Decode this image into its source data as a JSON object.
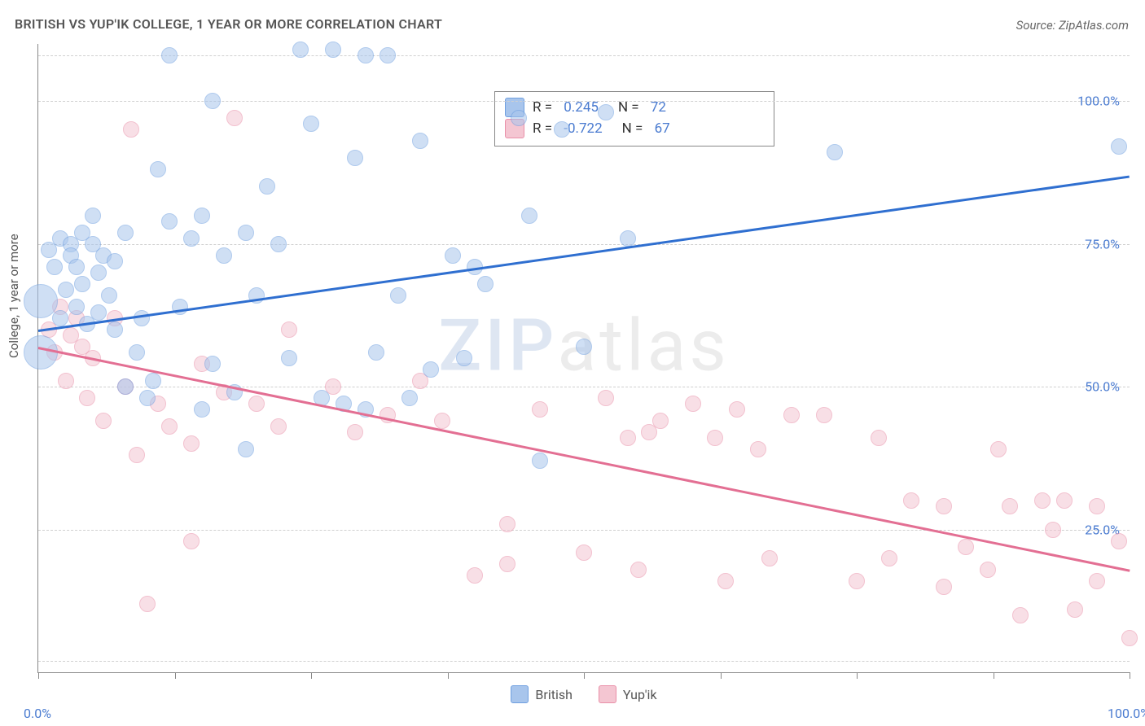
{
  "title": "BRITISH VS YUP'IK COLLEGE, 1 YEAR OR MORE CORRELATION CHART",
  "source_label": "Source: ZipAtlas.com",
  "ylabel": "College, 1 year or more",
  "watermark": {
    "part1": "ZIP",
    "part2": "atlas"
  },
  "chart": {
    "type": "scatter",
    "xlim": [
      0,
      100
    ],
    "ylim": [
      0,
      110
    ],
    "background_color": "#ffffff",
    "grid_color": "#d0d0d0",
    "axis_color": "#888888",
    "ytick_labels": [
      {
        "value": 25,
        "label": "25.0%"
      },
      {
        "value": 50,
        "label": "50.0%"
      },
      {
        "value": 75,
        "label": "75.0%"
      },
      {
        "value": 100,
        "label": "100.0%"
      }
    ],
    "xtick_positions": [
      0,
      12.5,
      25,
      37.5,
      50,
      62.5,
      75,
      87.5,
      100
    ],
    "xtick_labels": [
      {
        "value": 0,
        "label": "0.0%"
      },
      {
        "value": 100,
        "label": "100.0%"
      }
    ],
    "gridlines_y": [
      2,
      25,
      50,
      75,
      100,
      108
    ],
    "marker_radius": 9,
    "marker_opacity": 0.55,
    "line_width": 2.5,
    "label_fontsize": 16,
    "label_color": "#4a7bd0"
  },
  "series": {
    "british": {
      "label": "British",
      "fill": "#a8c5ec",
      "stroke": "#6f9fe0",
      "line_color": "#2f6fd0",
      "R_label": "R = ",
      "R_value": "0.245",
      "N_label": "N = ",
      "N_value": "72",
      "trend": {
        "x1": 0,
        "y1": 60,
        "x2": 100,
        "y2": 87
      },
      "points": [
        {
          "x": 0.2,
          "y": 65,
          "r": 20
        },
        {
          "x": 0.2,
          "y": 56,
          "r": 20
        },
        {
          "x": 1,
          "y": 74
        },
        {
          "x": 1.5,
          "y": 71
        },
        {
          "x": 2,
          "y": 76
        },
        {
          "x": 2,
          "y": 62
        },
        {
          "x": 2.5,
          "y": 67
        },
        {
          "x": 3,
          "y": 75
        },
        {
          "x": 3,
          "y": 73
        },
        {
          "x": 3.5,
          "y": 71
        },
        {
          "x": 3.5,
          "y": 64
        },
        {
          "x": 4,
          "y": 77
        },
        {
          "x": 4,
          "y": 68
        },
        {
          "x": 4.5,
          "y": 61
        },
        {
          "x": 5,
          "y": 75
        },
        {
          "x": 5,
          "y": 80
        },
        {
          "x": 5.5,
          "y": 70
        },
        {
          "x": 5.5,
          "y": 63
        },
        {
          "x": 6,
          "y": 73
        },
        {
          "x": 6.5,
          "y": 66
        },
        {
          "x": 7,
          "y": 72
        },
        {
          "x": 7,
          "y": 60
        },
        {
          "x": 8,
          "y": 77
        },
        {
          "x": 8,
          "y": 50
        },
        {
          "x": 9,
          "y": 56
        },
        {
          "x": 9.5,
          "y": 62
        },
        {
          "x": 10,
          "y": 48
        },
        {
          "x": 10.5,
          "y": 51
        },
        {
          "x": 11,
          "y": 88
        },
        {
          "x": 12,
          "y": 79
        },
        {
          "x": 13,
          "y": 64
        },
        {
          "x": 14,
          "y": 76
        },
        {
          "x": 15,
          "y": 80
        },
        {
          "x": 15,
          "y": 46
        },
        {
          "x": 16,
          "y": 54
        },
        {
          "x": 17,
          "y": 73
        },
        {
          "x": 18,
          "y": 49
        },
        {
          "x": 19,
          "y": 77
        },
        {
          "x": 19,
          "y": 39
        },
        {
          "x": 20,
          "y": 66
        },
        {
          "x": 21,
          "y": 85
        },
        {
          "x": 22,
          "y": 75
        },
        {
          "x": 23,
          "y": 55
        },
        {
          "x": 24,
          "y": 109
        },
        {
          "x": 25,
          "y": 96
        },
        {
          "x": 26,
          "y": 48
        },
        {
          "x": 27,
          "y": 109
        },
        {
          "x": 28,
          "y": 47
        },
        {
          "x": 29,
          "y": 90
        },
        {
          "x": 30,
          "y": 108
        },
        {
          "x": 30,
          "y": 46
        },
        {
          "x": 31,
          "y": 56
        },
        {
          "x": 32,
          "y": 108
        },
        {
          "x": 33,
          "y": 66
        },
        {
          "x": 34,
          "y": 48
        },
        {
          "x": 35,
          "y": 93
        },
        {
          "x": 36,
          "y": 53
        },
        {
          "x": 38,
          "y": 73
        },
        {
          "x": 39,
          "y": 55
        },
        {
          "x": 40,
          "y": 71
        },
        {
          "x": 41,
          "y": 68
        },
        {
          "x": 44,
          "y": 97
        },
        {
          "x": 45,
          "y": 80
        },
        {
          "x": 46,
          "y": 37
        },
        {
          "x": 48,
          "y": 95
        },
        {
          "x": 50,
          "y": 57
        },
        {
          "x": 52,
          "y": 98
        },
        {
          "x": 54,
          "y": 76
        },
        {
          "x": 73,
          "y": 91
        },
        {
          "x": 99,
          "y": 92
        },
        {
          "x": 12,
          "y": 108
        },
        {
          "x": 16,
          "y": 100
        }
      ]
    },
    "yupik": {
      "label": "Yup'ik",
      "fill": "#f4c6d2",
      "stroke": "#e98fa8",
      "line_color": "#e36f93",
      "R_label": "R = ",
      "R_value": "-0.722",
      "N_label": "N = ",
      "N_value": "67",
      "trend": {
        "x1": 0,
        "y1": 57,
        "x2": 100,
        "y2": 18
      },
      "points": [
        {
          "x": 1,
          "y": 60
        },
        {
          "x": 1.5,
          "y": 56
        },
        {
          "x": 2,
          "y": 64
        },
        {
          "x": 2.5,
          "y": 51
        },
        {
          "x": 3,
          "y": 59
        },
        {
          "x": 3.5,
          "y": 62
        },
        {
          "x": 4,
          "y": 57
        },
        {
          "x": 4.5,
          "y": 48
        },
        {
          "x": 5,
          "y": 55
        },
        {
          "x": 6,
          "y": 44
        },
        {
          "x": 7,
          "y": 62
        },
        {
          "x": 8,
          "y": 50
        },
        {
          "x": 8.5,
          "y": 95
        },
        {
          "x": 9,
          "y": 38
        },
        {
          "x": 10,
          "y": 12
        },
        {
          "x": 11,
          "y": 47
        },
        {
          "x": 12,
          "y": 43
        },
        {
          "x": 14,
          "y": 40
        },
        {
          "x": 14,
          "y": 23
        },
        {
          "x": 15,
          "y": 54
        },
        {
          "x": 17,
          "y": 49
        },
        {
          "x": 18,
          "y": 97
        },
        {
          "x": 20,
          "y": 47
        },
        {
          "x": 22,
          "y": 43
        },
        {
          "x": 23,
          "y": 60
        },
        {
          "x": 27,
          "y": 50
        },
        {
          "x": 29,
          "y": 42
        },
        {
          "x": 32,
          "y": 45
        },
        {
          "x": 35,
          "y": 51
        },
        {
          "x": 37,
          "y": 44
        },
        {
          "x": 40,
          "y": 17
        },
        {
          "x": 43,
          "y": 26
        },
        {
          "x": 43,
          "y": 19
        },
        {
          "x": 46,
          "y": 46
        },
        {
          "x": 50,
          "y": 21
        },
        {
          "x": 52,
          "y": 48
        },
        {
          "x": 54,
          "y": 41
        },
        {
          "x": 55,
          "y": 18
        },
        {
          "x": 56,
          "y": 42
        },
        {
          "x": 57,
          "y": 44
        },
        {
          "x": 60,
          "y": 47
        },
        {
          "x": 62,
          "y": 41
        },
        {
          "x": 63,
          "y": 16
        },
        {
          "x": 64,
          "y": 46
        },
        {
          "x": 66,
          "y": 39
        },
        {
          "x": 67,
          "y": 20
        },
        {
          "x": 69,
          "y": 45
        },
        {
          "x": 72,
          "y": 45
        },
        {
          "x": 75,
          "y": 16
        },
        {
          "x": 77,
          "y": 41
        },
        {
          "x": 78,
          "y": 20
        },
        {
          "x": 80,
          "y": 30
        },
        {
          "x": 83,
          "y": 29
        },
        {
          "x": 83,
          "y": 15
        },
        {
          "x": 85,
          "y": 22
        },
        {
          "x": 87,
          "y": 18
        },
        {
          "x": 88,
          "y": 39
        },
        {
          "x": 89,
          "y": 29
        },
        {
          "x": 90,
          "y": 10
        },
        {
          "x": 92,
          "y": 30
        },
        {
          "x": 93,
          "y": 25
        },
        {
          "x": 94,
          "y": 30
        },
        {
          "x": 95,
          "y": 11
        },
        {
          "x": 97,
          "y": 29
        },
        {
          "x": 97,
          "y": 16
        },
        {
          "x": 99,
          "y": 23
        },
        {
          "x": 100,
          "y": 6
        }
      ]
    }
  }
}
